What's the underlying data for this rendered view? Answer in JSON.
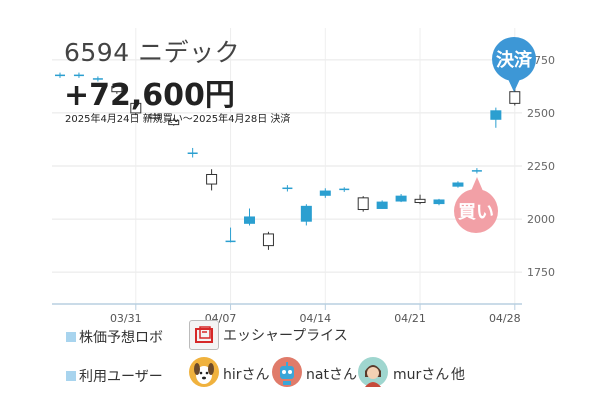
{
  "stock": {
    "title": "6594 ニデック"
  },
  "result": {
    "profit": "+72,600円",
    "period": "2025年4月24日 新規買い〜2025年4月28日 決済"
  },
  "badges": {
    "sell": "決済",
    "buy": "買い"
  },
  "footer": {
    "robot_label": "株価予想ロボ",
    "robot_name": "エッシャープライス",
    "users_label": "利用ユーザー",
    "users": [
      "hirさん",
      "natさん",
      "murさん"
    ],
    "others": "他"
  },
  "colors": {
    "up": "#2b9fd0",
    "down": "#ffffff",
    "sell": "#3d97d6",
    "buy": "#f2a0a6"
  },
  "icons": [
    "robot-logo-icon",
    "dog-avatar-icon",
    "robot-avatar-icon",
    "person-avatar-icon"
  ],
  "chart_data": {
    "type": "candlestick",
    "y_ticks": [
      1750,
      2000,
      2250,
      2500,
      2750
    ],
    "x_ticks": [
      "03/31",
      "04/07",
      "04/14",
      "04/21",
      "04/28"
    ],
    "ylim": [
      1600,
      2900
    ],
    "grid": true,
    "candles": [
      {
        "x": 0,
        "open": 2677,
        "close": 2677,
        "high": 2690,
        "low": 2665
      },
      {
        "x": 1,
        "open": 2677,
        "close": 2677,
        "high": 2690,
        "low": 2665
      },
      {
        "x": 2,
        "open": 2660,
        "close": 2660,
        "high": 2672,
        "low": 2648
      },
      {
        "x": 3,
        "open": 2625,
        "close": 2600,
        "high": 2640,
        "low": 2590
      },
      {
        "x": 4,
        "open": 2545,
        "close": 2500,
        "high": 2560,
        "low": 2490
      },
      {
        "x": 5,
        "open": 2490,
        "close": 2475,
        "high": 2500,
        "low": 2470
      },
      {
        "x": 6,
        "open": 2465,
        "close": 2445,
        "high": 2475,
        "low": 2440
      },
      {
        "x": 7,
        "open": 2310,
        "close": 2310,
        "high": 2335,
        "low": 2290
      },
      {
        "x": 8,
        "open": 2210,
        "close": 2165,
        "high": 2235,
        "low": 2135
      },
      {
        "x": 9,
        "open": 1895,
        "close": 1895,
        "high": 1960,
        "low": 1890
      },
      {
        "x": 10,
        "open": 1980,
        "close": 2010,
        "high": 2050,
        "low": 1970
      },
      {
        "x": 11,
        "open": 1930,
        "close": 1875,
        "high": 1940,
        "low": 1855
      },
      {
        "x": 12,
        "open": 2145,
        "close": 2145,
        "high": 2160,
        "low": 2130
      },
      {
        "x": 13,
        "open": 1990,
        "close": 2060,
        "high": 2070,
        "low": 1970
      },
      {
        "x": 14,
        "open": 2112,
        "close": 2132,
        "high": 2145,
        "low": 2100
      },
      {
        "x": 15,
        "open": 2140,
        "close": 2140,
        "high": 2150,
        "low": 2128
      },
      {
        "x": 16,
        "open": 2100,
        "close": 2045,
        "high": 2108,
        "low": 2035
      },
      {
        "x": 17,
        "open": 2050,
        "close": 2080,
        "high": 2088,
        "low": 2048
      },
      {
        "x": 18,
        "open": 2085,
        "close": 2108,
        "high": 2118,
        "low": 2080
      },
      {
        "x": 19,
        "open": 2093,
        "close": 2078,
        "high": 2115,
        "low": 2070
      },
      {
        "x": 20,
        "open": 2073,
        "close": 2090,
        "high": 2095,
        "low": 2065
      },
      {
        "x": 21,
        "open": 2155,
        "close": 2170,
        "high": 2178,
        "low": 2148
      },
      {
        "x": 22,
        "open": 2227,
        "close": 2227,
        "high": 2240,
        "low": 2215
      },
      {
        "x": 23,
        "open": 2470,
        "close": 2510,
        "high": 2525,
        "low": 2430
      },
      {
        "x": 24,
        "open": 2600,
        "close": 2545,
        "high": 2615,
        "low": 2535
      }
    ]
  }
}
